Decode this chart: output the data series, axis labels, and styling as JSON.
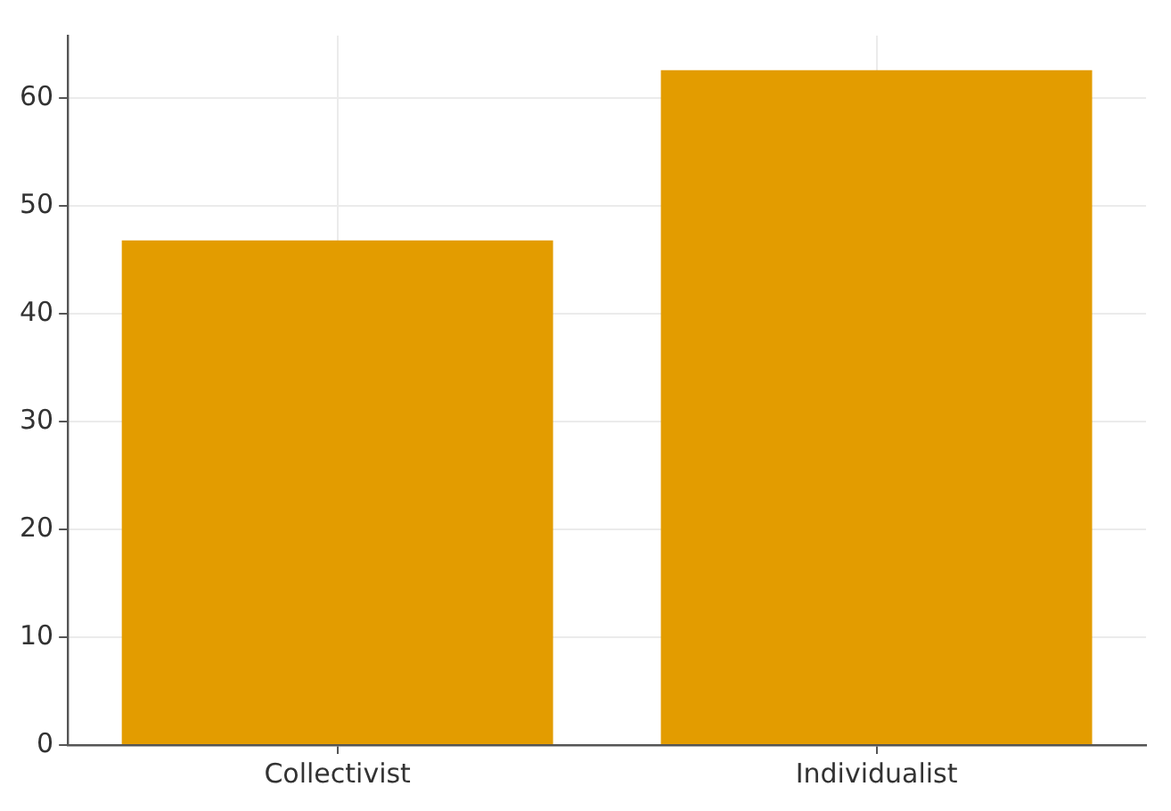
{
  "chart_data": {
    "type": "bar",
    "categories": [
      "Collectivist",
      "Individualist"
    ],
    "values": [
      46.8,
      62.6
    ],
    "color": "#e39c00",
    "ylim": [
      0,
      65.8
    ],
    "yticks": [
      0,
      10,
      20,
      30,
      40,
      50,
      60
    ],
    "grid": true
  }
}
